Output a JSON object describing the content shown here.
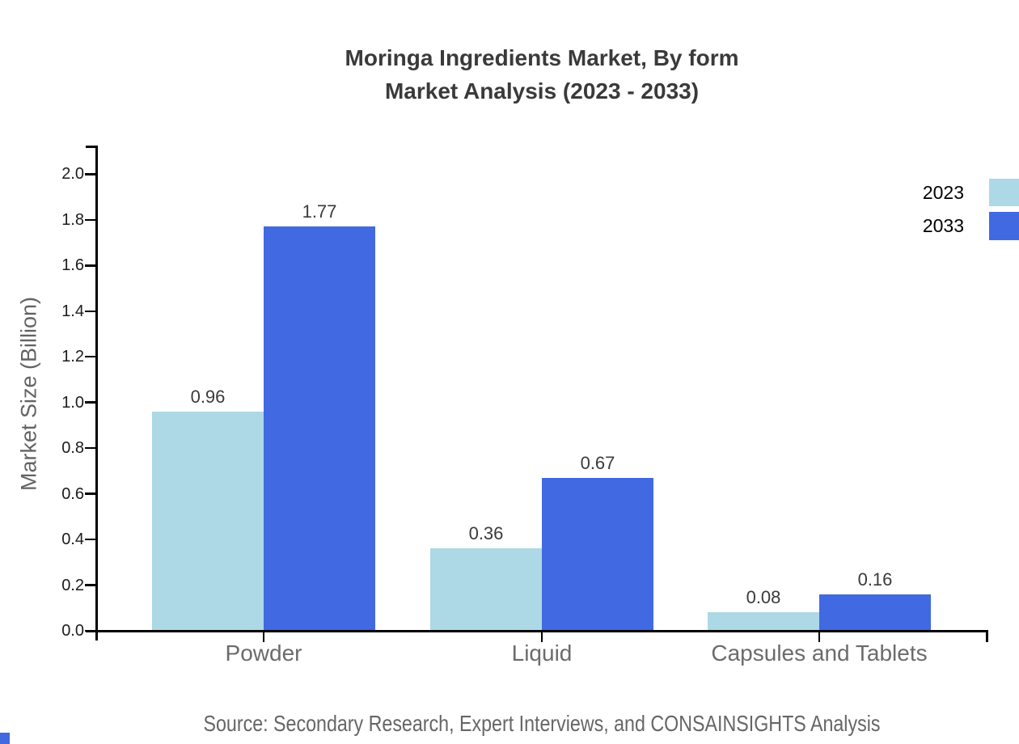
{
  "title": {
    "line1": "Moringa Ingredients Market, By form",
    "line2": "Market Analysis (2023 - 2033)"
  },
  "source_text": "Source: Secondary Research, Expert Interviews, and CONSAINSIGHTS Analysis",
  "colors": {
    "series_2023": "#ADD8E6",
    "series_2033": "#4169E1",
    "title_text": "#3a3a3a",
    "axis_line": "#000000",
    "tick_label": "#1c1c1c",
    "category_label": "#6b6b6b",
    "source_text": "#666666",
    "background": "#ffffff"
  },
  "legend": {
    "position": "top-right",
    "items": [
      {
        "label": "2023",
        "color": "#ADD8E6"
      },
      {
        "label": "2033",
        "color": "#4169E1"
      }
    ]
  },
  "chart_data": {
    "type": "bar",
    "title": "Moringa Ingredients Market, By form Market Analysis (2023 - 2033)",
    "categories": [
      "Powder",
      "Liquid",
      "Capsules and Tablets"
    ],
    "series": [
      {
        "name": "2023",
        "color": "#ADD8E6",
        "values": [
          0.96,
          0.36,
          0.08
        ]
      },
      {
        "name": "2033",
        "color": "#4169E1",
        "values": [
          1.77,
          0.67,
          0.16
        ]
      }
    ],
    "bar_value_labels": true,
    "xlabel": "",
    "ylabel": "Market Size (Billion)",
    "ylim": [
      0,
      2.0
    ],
    "ytick_step": 0.2,
    "yticks": [
      "0.0",
      "0.2",
      "0.4",
      "0.6",
      "0.8",
      "1.0",
      "1.2",
      "1.4",
      "1.6",
      "1.8",
      "2.0"
    ],
    "grid": false,
    "legend_position": "top-right"
  }
}
